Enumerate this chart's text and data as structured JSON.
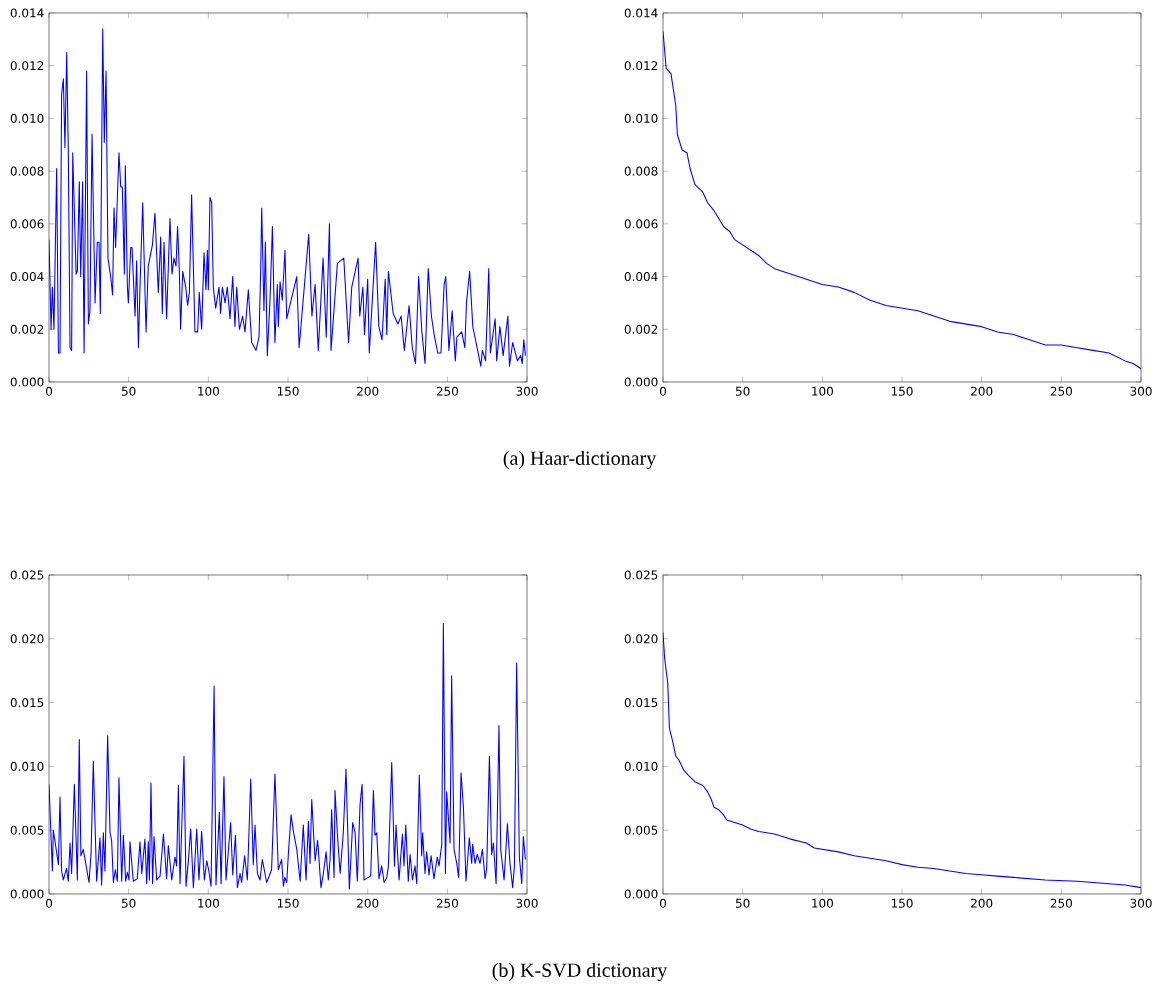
{
  "chart_data": [
    {
      "type": "line",
      "color": "#0000ff",
      "xlim": [
        0,
        300
      ],
      "ylim": [
        0,
        0.014
      ],
      "xticks": [
        0,
        50,
        100,
        150,
        200,
        250,
        300
      ],
      "yticks": [
        {
          "value": 0,
          "label": "0.000"
        },
        {
          "value": 0.002,
          "label": "0.002"
        },
        {
          "value": 0.004,
          "label": "0.004"
        },
        {
          "value": 0.006,
          "label": "0.006"
        },
        {
          "value": 0.008,
          "label": "0.008"
        },
        {
          "value": 0.01,
          "label": "0.010"
        },
        {
          "value": 0.012,
          "label": "0.012"
        },
        {
          "value": 0.014,
          "label": "0.014"
        }
      ],
      "annotations": [
        "(a) Haar-dictionary"
      ],
      "x": [
        0,
        1.3,
        2.1,
        3.1,
        4.8,
        5.9,
        6.9,
        7.9,
        9,
        10,
        11.1,
        12.1,
        13.2,
        14.2,
        14.9,
        17,
        17.8,
        19,
        19.9,
        21.1,
        22,
        23.6,
        24.7,
        25.7,
        27,
        28.9,
        30.3,
        31.4,
        32.2,
        33.7,
        34.7,
        35.8,
        37,
        38.7,
        39.9,
        40.8,
        41.8,
        43.9,
        45,
        46,
        47.3,
        47.9,
        49.2,
        49.8,
        51.3,
        52.1,
        54,
        55,
        56.1,
        57.1,
        58.8,
        60.9,
        62.3,
        64.9,
        66.5,
        68.6,
        70.1,
        71.1,
        72.2,
        73.8,
        75.9,
        77.2,
        78.4,
        79.7,
        80.7,
        81.8,
        82.6,
        83.9,
        85.8,
        87,
        88.1,
        89.5,
        91.6,
        93.3,
        94.3,
        95.8,
        97.3,
        98.5,
        99.4,
        100,
        101,
        102.1,
        103.1,
        104.6,
        106.7,
        107.7,
        108.8,
        110.5,
        111.9,
        113.6,
        115.3,
        116.7,
        117.8,
        119.5,
        121.5,
        123,
        125.1,
        127.2,
        129.9,
        131.8,
        132.8,
        133.5,
        134.9,
        135.8,
        137,
        138.7,
        140.2,
        141.8,
        143.3,
        143.9,
        145,
        146.4,
        148.1,
        149.2,
        155.5,
        157,
        163,
        165,
        167,
        169,
        172,
        174,
        176,
        177,
        181,
        185,
        188,
        190,
        194,
        195,
        197,
        198,
        200,
        201,
        205,
        207,
        209,
        211,
        212,
        213,
        216,
        219,
        221,
        223,
        226,
        228,
        230,
        232,
        234,
        236,
        238,
        240,
        242,
        244,
        246,
        248,
        249,
        251,
        253,
        255,
        256,
        259,
        261,
        262,
        264,
        266,
        271,
        272,
        274,
        276,
        277,
        280,
        281,
        283,
        285,
        288,
        289,
        291,
        294,
        296,
        297,
        298,
        299
      ],
      "values": [
        0.0054,
        0.002,
        0.0036,
        0.002,
        0.0081,
        0.0011,
        0.0011,
        0.0109,
        0.0115,
        0.0089,
        0.0125,
        0.0088,
        0.0013,
        0.0012,
        0.0087,
        0.0041,
        0.0042,
        0.0076,
        0.004,
        0.0076,
        0.0011,
        0.0118,
        0.0022,
        0.0027,
        0.0094,
        0.003,
        0.0053,
        0.0053,
        0.0026,
        0.0134,
        0.0091,
        0.0118,
        0.0047,
        0.004,
        0.0033,
        0.0066,
        0.0051,
        0.0087,
        0.0074,
        0.0074,
        0.0041,
        0.0082,
        0.0036,
        0.003,
        0.0051,
        0.0051,
        0.0025,
        0.0046,
        0.0013,
        0.0036,
        0.0068,
        0.0019,
        0.0044,
        0.0052,
        0.0064,
        0.0034,
        0.0055,
        0.0026,
        0.0053,
        0.0024,
        0.0062,
        0.0041,
        0.0047,
        0.0044,
        0.0059,
        0.0042,
        0.002,
        0.0042,
        0.0036,
        0.0029,
        0.0034,
        0.0071,
        0.0019,
        0.0019,
        0.0034,
        0.002,
        0.0049,
        0.0035,
        0.005,
        0.0035,
        0.007,
        0.0068,
        0.0036,
        0.0028,
        0.0036,
        0.0026,
        0.0036,
        0.003,
        0.0036,
        0.0024,
        0.004,
        0.0021,
        0.0036,
        0.002,
        0.0025,
        0.0019,
        0.0035,
        0.0015,
        0.0012,
        0.0017,
        0.0041,
        0.0066,
        0.0027,
        0.0053,
        0.001,
        0.0031,
        0.0059,
        0.0015,
        0.0037,
        0.0021,
        0.0038,
        0.0031,
        0.005,
        0.0024,
        0.004,
        0.0013,
        0.0056,
        0.0025,
        0.0037,
        0.0012,
        0.0047,
        0.0017,
        0.006,
        0.0012,
        0.0045,
        0.0047,
        0.0015,
        0.0036,
        0.0047,
        0.0025,
        0.0036,
        0.0018,
        0.0039,
        0.0011,
        0.0053,
        0.0021,
        0.0016,
        0.0039,
        0.0018,
        0.0042,
        0.0026,
        0.0022,
        0.0025,
        0.0012,
        0.0029,
        0.0013,
        0.0007,
        0.004,
        0.0019,
        0.0007,
        0.0043,
        0.0025,
        0.0017,
        0.0011,
        0.0011,
        0.0037,
        0.004,
        0.0012,
        0.0027,
        0.0008,
        0.0017,
        0.0019,
        0.0013,
        0.003,
        0.0042,
        0.0021,
        0.0006,
        0.0012,
        0.0008,
        0.0043,
        0.0011,
        0.0024,
        0.0008,
        0.0021,
        0.001,
        0.0025,
        0.0006,
        0.0015,
        0.0008,
        0.001,
        0.0007,
        0.0016,
        0.001
      ]
    },
    {
      "type": "line",
      "color": "#0000ff",
      "xlim": [
        0,
        300
      ],
      "ylim": [
        0,
        0.014
      ],
      "xticks": [
        0,
        50,
        100,
        150,
        200,
        250,
        300
      ],
      "yticks": [
        {
          "value": 0,
          "label": "0.000"
        },
        {
          "value": 0.002,
          "label": "0.002"
        },
        {
          "value": 0.004,
          "label": "0.004"
        },
        {
          "value": 0.006,
          "label": "0.006"
        },
        {
          "value": 0.008,
          "label": "0.008"
        },
        {
          "value": 0.01,
          "label": "0.010"
        },
        {
          "value": 0.012,
          "label": "0.012"
        },
        {
          "value": 0.014,
          "label": "0.014"
        }
      ],
      "x": [
        0,
        2,
        5,
        8,
        9,
        12,
        15,
        17,
        20,
        25,
        28,
        32,
        35,
        38,
        42,
        45,
        50,
        55,
        60,
        65,
        70,
        80,
        90,
        100,
        110,
        120,
        130,
        140,
        150,
        160,
        170,
        180,
        190,
        200,
        210,
        220,
        230,
        240,
        250,
        260,
        270,
        280,
        290,
        295,
        300
      ],
      "values": [
        0.0133,
        0.0119,
        0.0117,
        0.0105,
        0.0094,
        0.0088,
        0.0087,
        0.0081,
        0.0075,
        0.0072,
        0.0068,
        0.0065,
        0.0062,
        0.0059,
        0.0057,
        0.0054,
        0.0052,
        0.005,
        0.0048,
        0.0045,
        0.0043,
        0.0041,
        0.0039,
        0.0037,
        0.0036,
        0.0034,
        0.0031,
        0.0029,
        0.0028,
        0.0027,
        0.0025,
        0.0023,
        0.0022,
        0.0021,
        0.0019,
        0.0018,
        0.0016,
        0.0014,
        0.0014,
        0.0013,
        0.0012,
        0.0011,
        0.0008,
        0.0007,
        0.0005
      ]
    },
    {
      "type": "line",
      "color": "#0000ff",
      "xlim": [
        0,
        300
      ],
      "ylim": [
        0,
        0.025
      ],
      "xticks": [
        0,
        50,
        100,
        150,
        200,
        250,
        300
      ],
      "yticks": [
        {
          "value": 0,
          "label": "0.000"
        },
        {
          "value": 0.005,
          "label": "0.005"
        },
        {
          "value": 0.01,
          "label": "0.010"
        },
        {
          "value": 0.015,
          "label": "0.015"
        },
        {
          "value": 0.02,
          "label": "0.020"
        },
        {
          "value": 0.025,
          "label": "0.025"
        }
      ],
      "annotations": [
        "(b) K-SVD dictionary"
      ],
      "x": [
        0,
        2.1,
        2.7,
        5.9,
        6.9,
        7.9,
        9,
        11,
        12.1,
        13.2,
        14.2,
        15.9,
        17.8,
        19,
        20,
        21.5,
        23.6,
        25.1,
        26.4,
        27.8,
        29.9,
        32,
        33,
        34.1,
        35.1,
        36.8,
        38.3,
        39.3,
        40.4,
        41.6,
        42.9,
        43.9,
        45.6,
        46.7,
        48.1,
        49.2,
        50.2,
        50.8,
        52.9,
        55.4,
        57.1,
        58.2,
        60.2,
        61.3,
        62.3,
        63,
        64,
        65,
        65.9,
        67.6,
        69.7,
        71.8,
        73.8,
        74.9,
        77,
        79.1,
        80.1,
        81.2,
        82.2,
        84.7,
        86,
        87.4,
        88.9,
        90.6,
        92.7,
        94.1,
        95.8,
        97.5,
        99,
        100.2,
        101.7,
        103.6,
        104.8,
        106.9,
        108,
        109.8,
        111.1,
        114,
        115.3,
        117,
        118.2,
        119.9,
        120.9,
        122.8,
        124.5,
        126.6,
        128.2,
        129.3,
        130.8,
        132.4,
        133.9,
        136.6,
        139.7,
        141.8,
        143.9,
        146,
        147.1,
        148,
        149.2,
        150.2,
        151.9,
        153.4,
        155.5,
        157.6,
        159.6,
        161.3,
        162.8,
        163.8,
        164.9,
        167,
        168.6,
        170.7,
        172.2,
        173.9,
        175.3,
        176.4,
        177.4,
        178.9,
        179.5,
        181,
        182.7,
        184.7,
        186.4,
        188.5,
        190.6,
        192.1,
        193.5,
        195.2,
        196.5,
        197.7,
        200.4,
        201.9,
        203.6,
        204.6,
        205.7,
        207.1,
        208.8,
        210.3,
        212,
        213,
        215.1,
        216.8,
        217.8,
        219.7,
        221.8,
        222.8,
        223.9,
        225.5,
        226.6,
        228.1,
        229.7,
        230.8,
        232.4,
        233.9,
        234.5,
        236,
        237,
        238.5,
        239.8,
        241.6,
        243.7,
        244.8,
        246.5,
        247.5,
        248.8,
        249.6,
        251.7,
        252.7,
        254.2,
        255.9,
        257.1,
        258.6,
        260.1,
        261.7,
        263.8,
        265.3,
        265.9,
        267.4,
        268.8,
        270.5,
        272,
        273.7,
        274.7,
        276.4,
        277.8,
        278.9,
        280.6,
        282.4,
        283.5,
        285.6,
        287.7,
        289.3,
        291,
        292.1,
        293.5,
        295.2,
        296.7,
        297.7,
        299
      ],
      "values": [
        0.0086,
        0.0018,
        0.005,
        0.0023,
        0.0076,
        0.0018,
        0.0011,
        0.002,
        0.001,
        0.004,
        0.0016,
        0.0086,
        0.0011,
        0.0121,
        0.003,
        0.0035,
        0.002,
        0.0009,
        0.0032,
        0.0104,
        0.001,
        0.0044,
        0.0007,
        0.0048,
        0.0018,
        0.0124,
        0.0048,
        0.0042,
        0.0009,
        0.0019,
        0.001,
        0.0091,
        0.001,
        0.0046,
        0.001,
        0.0017,
        0.0011,
        0.0041,
        0.001,
        0.0012,
        0.0041,
        0.0016,
        0.0043,
        0.0008,
        0.0041,
        0.0011,
        0.0087,
        0.0008,
        0.0045,
        0.0011,
        0.0014,
        0.0047,
        0.0012,
        0.0038,
        0.0011,
        0.0029,
        0.0022,
        0.0085,
        0.0008,
        0.0108,
        0.0006,
        0.0025,
        0.0051,
        0.0005,
        0.0051,
        0.0011,
        0.0049,
        0.0011,
        0.0026,
        0.0019,
        0.0006,
        0.0163,
        0.0007,
        0.0064,
        0.0008,
        0.0092,
        0.0011,
        0.0056,
        0.0015,
        0.0046,
        0.0005,
        0.0016,
        0.0009,
        0.003,
        0.0011,
        0.009,
        0.0023,
        0.0054,
        0.0016,
        0.0011,
        0.0027,
        0.0009,
        0.0019,
        0.0094,
        0.0019,
        0.0027,
        0.0006,
        0.0013,
        0.0009,
        0.0031,
        0.0062,
        0.0049,
        0.0035,
        0.001,
        0.0054,
        0.0011,
        0.0057,
        0.0024,
        0.0074,
        0.0026,
        0.0042,
        0.0005,
        0.0016,
        0.0033,
        0.0011,
        0.0027,
        0.0066,
        0.0013,
        0.0081,
        0.0047,
        0.0016,
        0.0048,
        0.0098,
        0.0004,
        0.0056,
        0.0048,
        0.001,
        0.007,
        0.0086,
        0.0011,
        0.0013,
        0.0014,
        0.0081,
        0.0046,
        0.0048,
        0.0012,
        0.0022,
        0.0009,
        0.0013,
        0.0022,
        0.0103,
        0.0022,
        0.0054,
        0.0011,
        0.0047,
        0.0022,
        0.0054,
        0.001,
        0.0031,
        0.0011,
        0.0022,
        0.0008,
        0.0093,
        0.003,
        0.0048,
        0.0016,
        0.0033,
        0.0015,
        0.003,
        0.0012,
        0.0029,
        0.0022,
        0.0039,
        0.0212,
        0.0016,
        0.008,
        0.004,
        0.0171,
        0.0035,
        0.0024,
        0.0013,
        0.0095,
        0.0068,
        0.001,
        0.0044,
        0.0024,
        0.0039,
        0.0024,
        0.0031,
        0.0024,
        0.0035,
        0.0012,
        0.002,
        0.0108,
        0.0031,
        0.004,
        0.0008,
        0.0132,
        0.0035,
        0.0011,
        0.0055,
        0.0024,
        0.0005,
        0.0022,
        0.0181,
        0.0029,
        0.0008,
        0.0045,
        0.0027
      ]
    },
    {
      "type": "line",
      "color": "#0000ff",
      "xlim": [
        0,
        300
      ],
      "ylim": [
        0,
        0.025
      ],
      "xticks": [
        0,
        50,
        100,
        150,
        200,
        250,
        300
      ],
      "yticks": [
        {
          "value": 0,
          "label": "0.000"
        },
        {
          "value": 0.005,
          "label": "0.005"
        },
        {
          "value": 0.01,
          "label": "0.010"
        },
        {
          "value": 0.015,
          "label": "0.015"
        },
        {
          "value": 0.02,
          "label": "0.020"
        },
        {
          "value": 0.025,
          "label": "0.025"
        }
      ],
      "x": [
        0,
        1,
        3,
        4,
        6,
        8,
        10,
        13,
        16,
        20,
        25,
        28,
        30,
        32,
        35,
        38,
        40,
        45,
        50,
        55,
        60,
        70,
        80,
        90,
        95,
        100,
        110,
        120,
        130,
        140,
        150,
        160,
        170,
        180,
        190,
        200,
        210,
        220,
        240,
        260,
        280,
        290,
        300
      ],
      "values": [
        0.0205,
        0.0185,
        0.0165,
        0.013,
        0.012,
        0.0108,
        0.0105,
        0.0097,
        0.0093,
        0.0088,
        0.0085,
        0.008,
        0.0075,
        0.0068,
        0.0066,
        0.0062,
        0.0058,
        0.0056,
        0.0054,
        0.0051,
        0.0049,
        0.0047,
        0.0043,
        0.004,
        0.0036,
        0.0035,
        0.0033,
        0.003,
        0.0028,
        0.0026,
        0.0023,
        0.0021,
        0.002,
        0.0018,
        0.0016,
        0.0015,
        0.0014,
        0.0013,
        0.0011,
        0.001,
        0.0008,
        0.0007,
        0.0005
      ]
    }
  ]
}
